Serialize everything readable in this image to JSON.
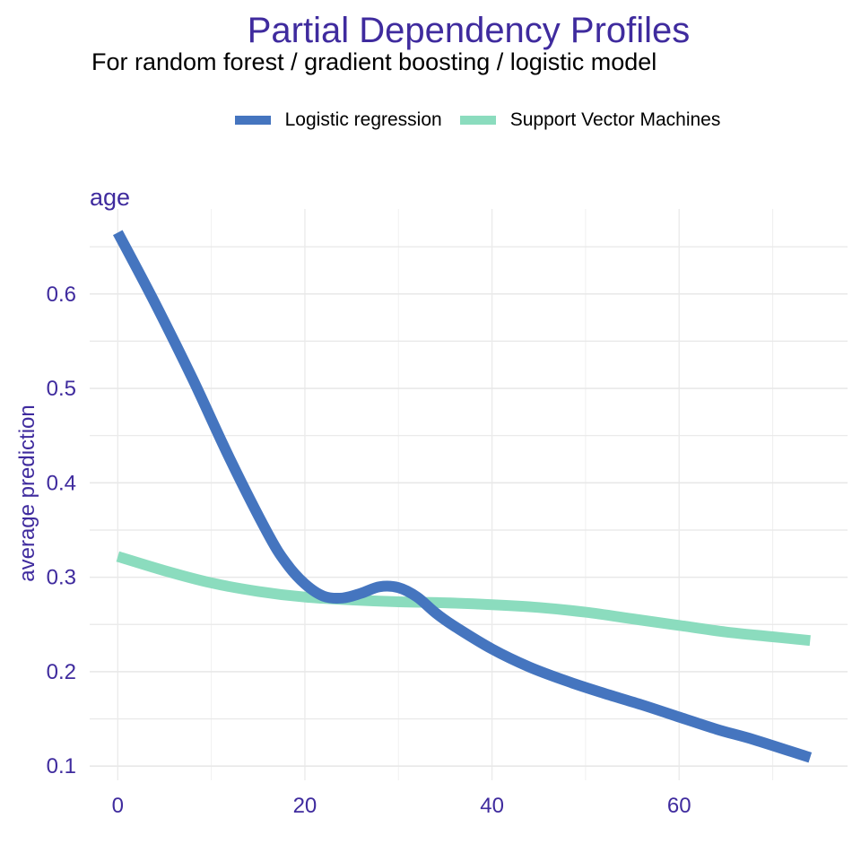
{
  "title": "Partial Dependency Profiles",
  "subtitle": "For random forest / gradient boosting / logistic model",
  "colors": {
    "title": "#3f2b9e",
    "axis_text": "#3f2b9e",
    "grid": "#e8e8e8",
    "background": "#ffffff"
  },
  "chart_data": {
    "type": "line",
    "panel_label": "age",
    "ylabel": "average prediction",
    "xlabel": "",
    "xlim": [
      -3,
      78
    ],
    "ylim": [
      0.085,
      0.69
    ],
    "x_ticks": [
      0,
      20,
      40,
      60
    ],
    "y_ticks": [
      0.1,
      0.2,
      0.3,
      0.4,
      0.5,
      0.6
    ],
    "x_tick_labels": [
      "0",
      "20",
      "40",
      "60"
    ],
    "y_tick_labels": [
      "0.1",
      "0.2",
      "0.3",
      "0.4",
      "0.5",
      "0.6"
    ],
    "grid": true,
    "legend_position": "top",
    "series": [
      {
        "name": "Logistic regression",
        "color": "#4575bf",
        "x": [
          0,
          4,
          8,
          12,
          16,
          18,
          20,
          22,
          24,
          26,
          28,
          30,
          32,
          34,
          36,
          40,
          44,
          48,
          52,
          56,
          60,
          64,
          68,
          74
        ],
        "y": [
          0.665,
          0.59,
          0.51,
          0.425,
          0.347,
          0.315,
          0.293,
          0.28,
          0.278,
          0.283,
          0.29,
          0.289,
          0.279,
          0.262,
          0.248,
          0.224,
          0.205,
          0.19,
          0.177,
          0.165,
          0.152,
          0.139,
          0.128,
          0.109
        ]
      },
      {
        "name": "Support Vector Machines",
        "color": "#8bdcbe",
        "x": [
          0,
          5,
          10,
          15,
          20,
          25,
          30,
          35,
          40,
          45,
          50,
          55,
          60,
          65,
          70,
          74
        ],
        "y": [
          0.322,
          0.307,
          0.294,
          0.285,
          0.279,
          0.276,
          0.274,
          0.273,
          0.271,
          0.268,
          0.263,
          0.256,
          0.249,
          0.242,
          0.237,
          0.233
        ]
      }
    ]
  }
}
